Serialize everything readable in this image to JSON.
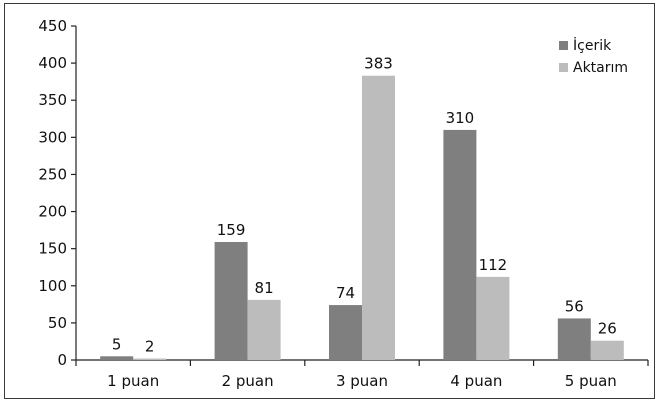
{
  "chart_data": {
    "type": "bar",
    "categories": [
      "1 puan",
      "2 puan",
      "3 puan",
      "4 puan",
      "5 puan"
    ],
    "series": [
      {
        "name": "İçerik",
        "values": [
          5,
          159,
          74,
          310,
          56
        ],
        "color": "#7f7f80"
      },
      {
        "name": "Aktarım",
        "values": [
          2,
          81,
          383,
          112,
          26
        ],
        "color": "#bcbcbc"
      }
    ],
    "title": "",
    "xlabel": "",
    "ylabel": "",
    "ylim": [
      0,
      450
    ],
    "y_ticks": [
      0,
      50,
      100,
      150,
      200,
      250,
      300,
      350,
      400,
      450
    ],
    "grid": false,
    "legend_position": "top-right",
    "data_labels": true
  }
}
